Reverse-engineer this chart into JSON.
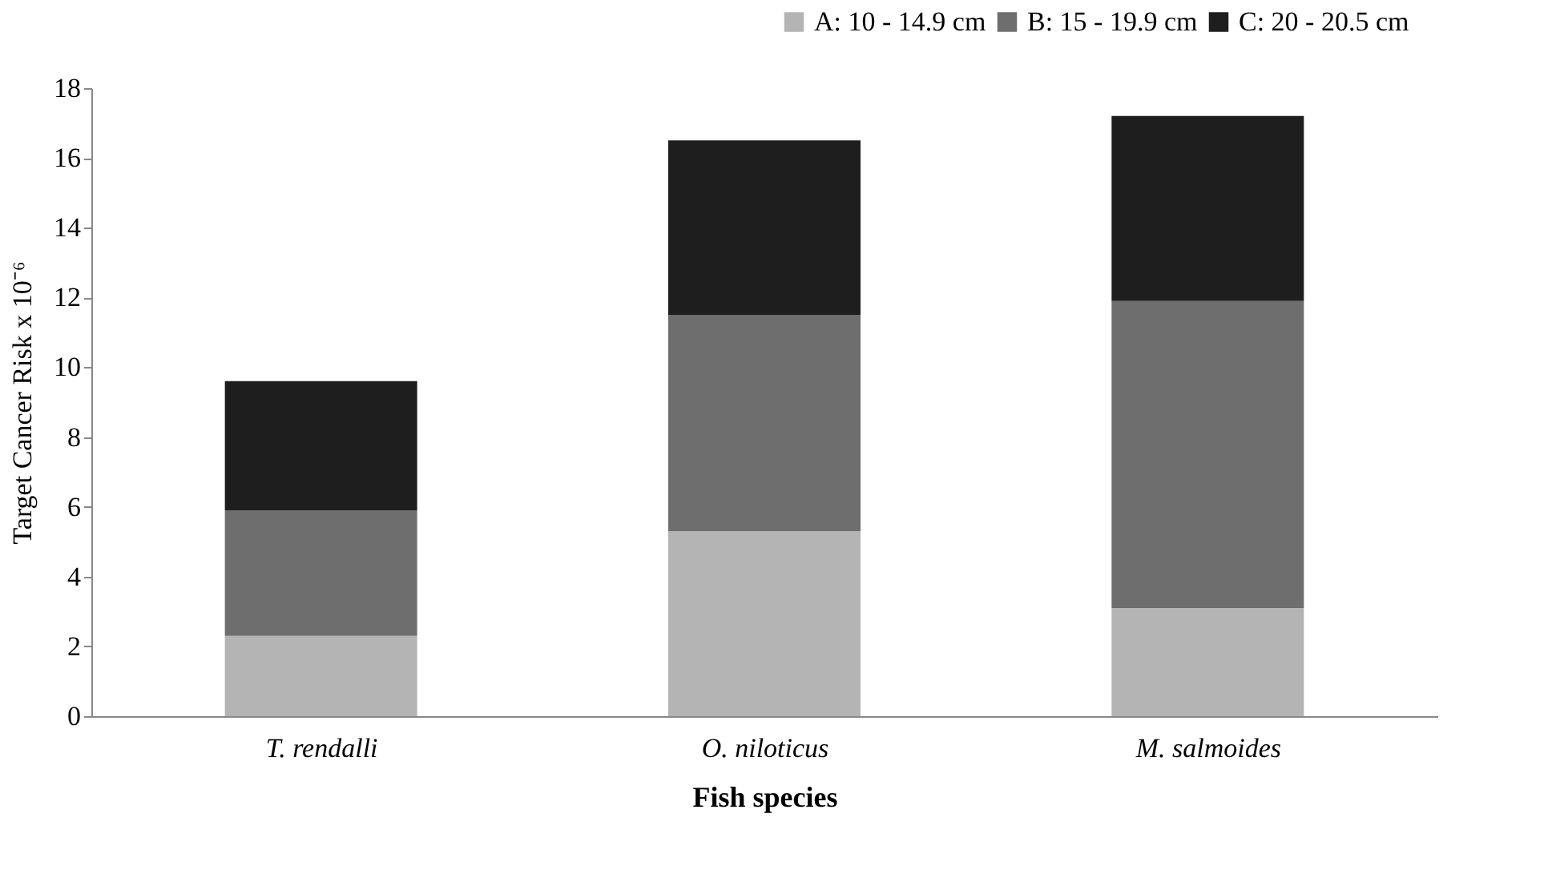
{
  "chart_data": {
    "type": "bar",
    "stacked": true,
    "xlabel": "Fish species",
    "ylabel": "Target Cancer Risk x 10⁻⁶",
    "categories": [
      "T. rendalli",
      "O. niloticus",
      "M. salmoides"
    ],
    "series": [
      {
        "name": "A: 10 - 14.9 cm",
        "color": "#b4b4b4",
        "values": [
          2.3,
          5.3,
          3.1
        ]
      },
      {
        "name": "B: 15 - 19.9 cm",
        "color": "#6e6e6e",
        "values": [
          3.6,
          6.2,
          8.8
        ]
      },
      {
        "name": "C: 20 - 20.5 cm",
        "color": "#1e1e1e",
        "values": [
          3.7,
          5.0,
          5.3
        ]
      }
    ],
    "ylim": [
      0,
      18
    ],
    "yticks": [
      0,
      2,
      4,
      6,
      8,
      10,
      12,
      14,
      16,
      18
    ],
    "grid": false,
    "legend": "top right"
  }
}
